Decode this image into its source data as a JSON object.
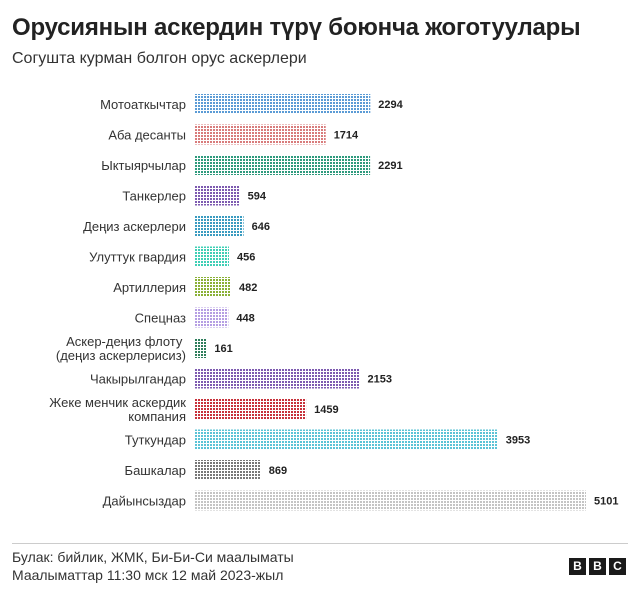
{
  "header": {
    "title": "Орусиянын аскердин түрү боюнча жоготуулары",
    "subtitle": "Согушта курман болгон орус аскерлери"
  },
  "footer": {
    "source": "Булак: бийлик, ЖМК, Би-Би-Си маалыматы",
    "updated": "Маалыматтар 11:30 мск 12 май 2023-жыл",
    "logo_letters": [
      "B",
      "B",
      "C"
    ]
  },
  "chart_data": {
    "type": "bar",
    "orientation": "horizontal",
    "categories": [
      "Мотоаткычтар",
      "Аба десанты",
      "Ыктыярчылар",
      "Танкерлер",
      "Деңиз аскерлери",
      "Улуттук гвардия",
      "Артиллерия",
      "Спецназ",
      "Аскер-деңиз флоту (деңиз аскерлерисиз)",
      "Чакырылгандар",
      "Жеке менчик аскердик компания",
      "Туткундар",
      "Башкалар",
      "Дайынсыздар"
    ],
    "values": [
      2294,
      1714,
      2291,
      594,
      646,
      456,
      482,
      448,
      161,
      2153,
      1459,
      3953,
      869,
      5101
    ],
    "colors": [
      "#5b9bd5",
      "#d87b7b",
      "#2e9a7d",
      "#7d5ab0",
      "#3a9bc0",
      "#3fcfb5",
      "#8ab036",
      "#b59ee3",
      "#2e7d5b",
      "#7d5ab0",
      "#c7313a",
      "#5bc3d6",
      "#777777",
      "#c4c4c4"
    ],
    "style": "dotted-bars",
    "grid": false,
    "xlim": [
      0,
      5101
    ]
  }
}
